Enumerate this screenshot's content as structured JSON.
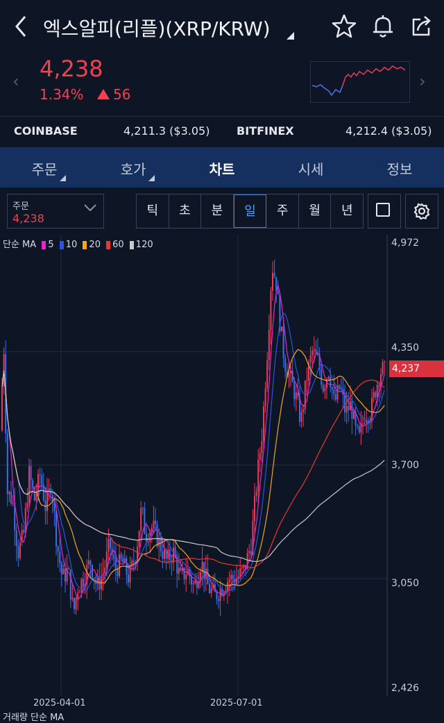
{
  "header": {
    "back_icon": "chevron-left-icon",
    "title": "엑스알피(리플)(XRP/KRW)",
    "icons": [
      "star-icon",
      "bell-icon",
      "share-icon"
    ]
  },
  "quote": {
    "price": "4,238",
    "change_pct": "1.34%",
    "change_value": "56",
    "color_up": "#f2424f"
  },
  "exchanges": [
    {
      "name": "COINBASE",
      "value": "4,211.3 ($3.05)"
    },
    {
      "name": "BITFINEX",
      "value": "4,212.4 ($3.05)"
    }
  ],
  "tabs": [
    {
      "label": "주문",
      "has_menu": true
    },
    {
      "label": "호가",
      "has_menu": true
    },
    {
      "label": "차트",
      "active": true
    },
    {
      "label": "시세"
    },
    {
      "label": "정보"
    }
  ],
  "toolbar": {
    "order_label": "주문",
    "order_price": "4,238",
    "periods": [
      "틱",
      "초",
      "분",
      "일",
      "주",
      "월",
      "년"
    ],
    "active_period": "일"
  },
  "legend": {
    "prefix": "단순 MA",
    "items": [
      {
        "value": "5",
        "color": "#e626c8"
      },
      {
        "value": "10",
        "color": "#2a55e0"
      },
      {
        "value": "20",
        "color": "#f2a81e"
      },
      {
        "value": "60",
        "color": "#e8382e"
      },
      {
        "value": "120",
        "color": "#c9c9c9"
      }
    ]
  },
  "bottom_legend": "거래량 단순 MA",
  "chart_data": {
    "type": "candlestick",
    "y_ticks": [
      "4,972",
      "4,350",
      "3,700",
      "3,050",
      "2,426"
    ],
    "x_ticks": [
      "2025-04-01",
      "2025-07-01"
    ],
    "last_price_label": "4,237",
    "ylim": [
      2426,
      4972
    ],
    "up_color": "#e83c5a",
    "down_color": "#3a6fe8"
  }
}
